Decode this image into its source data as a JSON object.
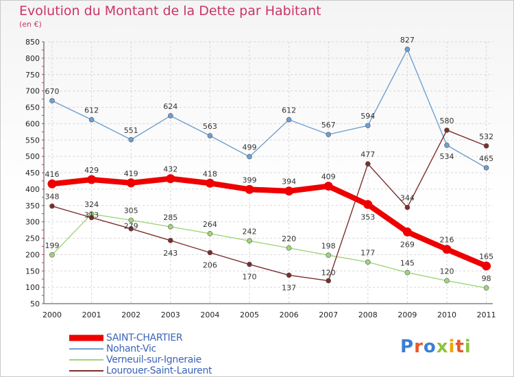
{
  "header": {
    "title": "Evolution du Montant de la Dette par Habitant",
    "unit": "(en €)"
  },
  "logo": {
    "text": "Proxiti",
    "colors": [
      "#3a7fd5",
      "#e8592b",
      "#3a7fd5",
      "#8cc43f",
      "#f2a300",
      "#e8592b",
      "#8cc43f"
    ]
  },
  "chart_data": {
    "type": "line",
    "x": [
      "2000",
      "2001",
      "2002",
      "2003",
      "2004",
      "2005",
      "2006",
      "2007",
      "2008",
      "2009",
      "2010",
      "2011"
    ],
    "ylim": [
      50,
      850
    ],
    "yticks": [
      50,
      100,
      150,
      200,
      250,
      300,
      350,
      400,
      450,
      500,
      550,
      600,
      650,
      700,
      750,
      800,
      850
    ],
    "grid": true,
    "legend_position": "bottom-left",
    "series": [
      {
        "name": "SAINT-CHARTIER",
        "color": "#ee0000",
        "thick": true,
        "values": [
          416,
          429,
          419,
          432,
          418,
          399,
          394,
          409,
          353,
          269,
          216,
          165
        ]
      },
      {
        "name": "Nohant-Vic",
        "color": "#6f9fd0",
        "thick": false,
        "values": [
          670,
          612,
          551,
          624,
          563,
          499,
          612,
          567,
          594,
          827,
          534,
          465
        ]
      },
      {
        "name": "Verneuil-sur-Igneraie",
        "color": "#9fd57a",
        "thick": false,
        "values": [
          199,
          324,
          305,
          285,
          264,
          242,
          220,
          198,
          177,
          145,
          120,
          98
        ]
      },
      {
        "name": "Lourouer-Saint-Laurent",
        "color": "#7a2e2e",
        "thick": false,
        "values": [
          348,
          313,
          279,
          243,
          206,
          170,
          137,
          120,
          477,
          344,
          580,
          532
        ]
      }
    ]
  }
}
